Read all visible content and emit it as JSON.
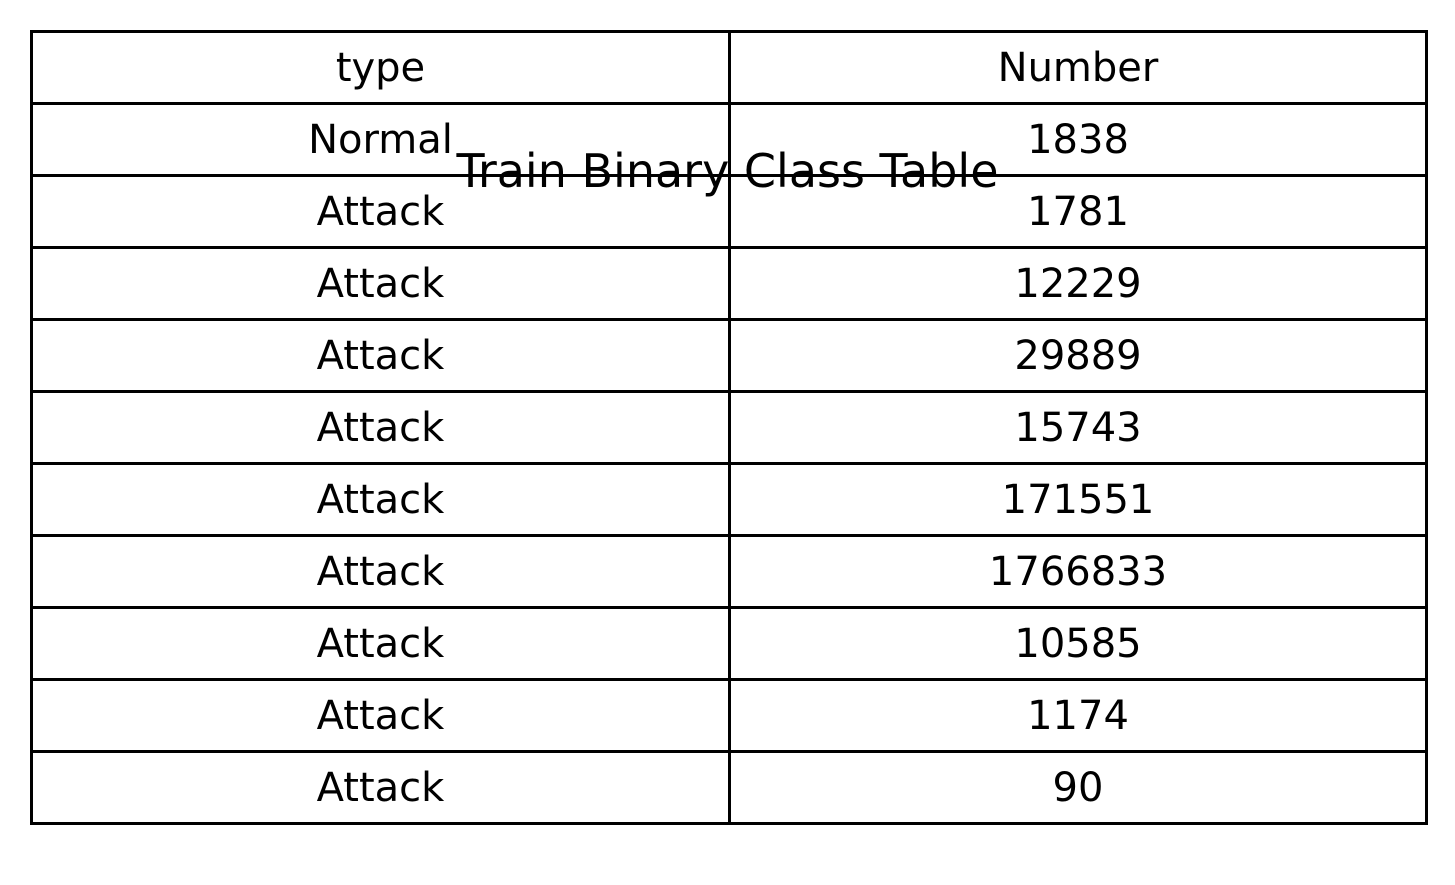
{
  "chart_data": {
    "type": "table",
    "title": "Train Binary Class Table",
    "columns": [
      "type",
      "Number"
    ],
    "rows": [
      [
        "Normal",
        "1838"
      ],
      [
        "Attack",
        "1781"
      ],
      [
        "Attack",
        "12229"
      ],
      [
        "Attack",
        "29889"
      ],
      [
        "Attack",
        "15743"
      ],
      [
        "Attack",
        "171551"
      ],
      [
        "Attack",
        "1766833"
      ],
      [
        "Attack",
        "10585"
      ],
      [
        "Attack",
        "1174"
      ],
      [
        "Attack",
        "90"
      ]
    ]
  }
}
